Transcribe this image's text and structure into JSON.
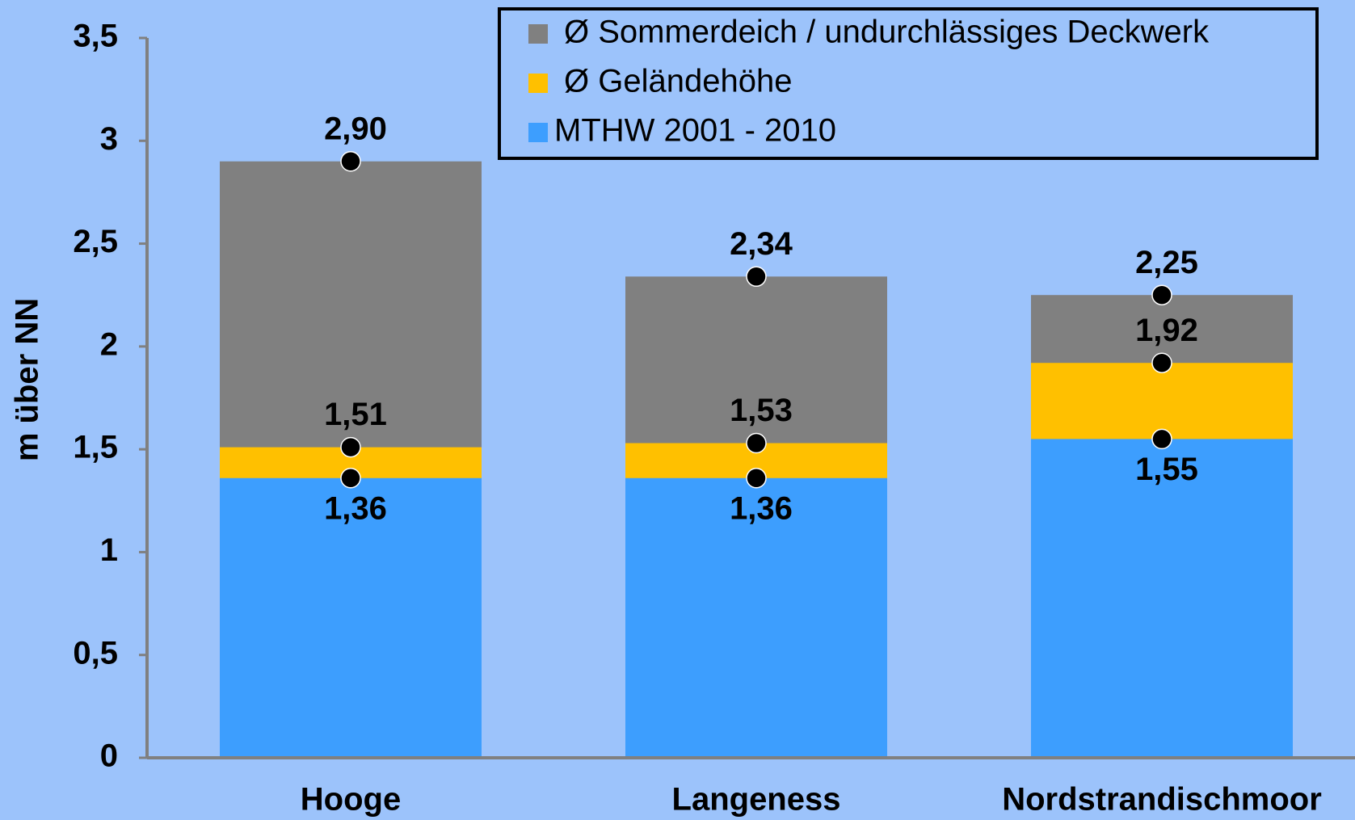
{
  "chart_data": {
    "type": "bar",
    "layout": "overlap",
    "categories": [
      "Hooge",
      "Langeness",
      "Nordstrandischmoor"
    ],
    "y_label": "m über NN",
    "series": [
      {
        "name": "Ø Sommerdeich / undurchlässiges Deckwerk",
        "color": "#808080",
        "values": [
          2.9,
          2.34,
          2.25
        ],
        "value_labels": [
          "2,90",
          "2,34",
          "2,25"
        ]
      },
      {
        "name": "Ø Geländehöhe",
        "color": "#ffc000",
        "values": [
          1.51,
          1.53,
          1.92
        ],
        "value_labels": [
          "1,51",
          "1,53",
          "1,92"
        ]
      },
      {
        "name": "MTHW 2001 - 2010",
        "color": "#3d9efe",
        "values": [
          1.36,
          1.36,
          1.55
        ],
        "value_labels": [
          "1,36",
          "1,36",
          "1,55"
        ]
      }
    ],
    "ylim": [
      0,
      3.5
    ],
    "yticks": [
      0,
      {
        "value": 0.5,
        "label": "0,5"
      },
      1,
      {
        "value": 1.5,
        "label": "1,5"
      },
      2,
      {
        "value": 2.5,
        "label": "2,5"
      },
      3,
      {
        "value": 3.5,
        "label": "3,5"
      }
    ],
    "grid": false,
    "legend": "top-right"
  }
}
